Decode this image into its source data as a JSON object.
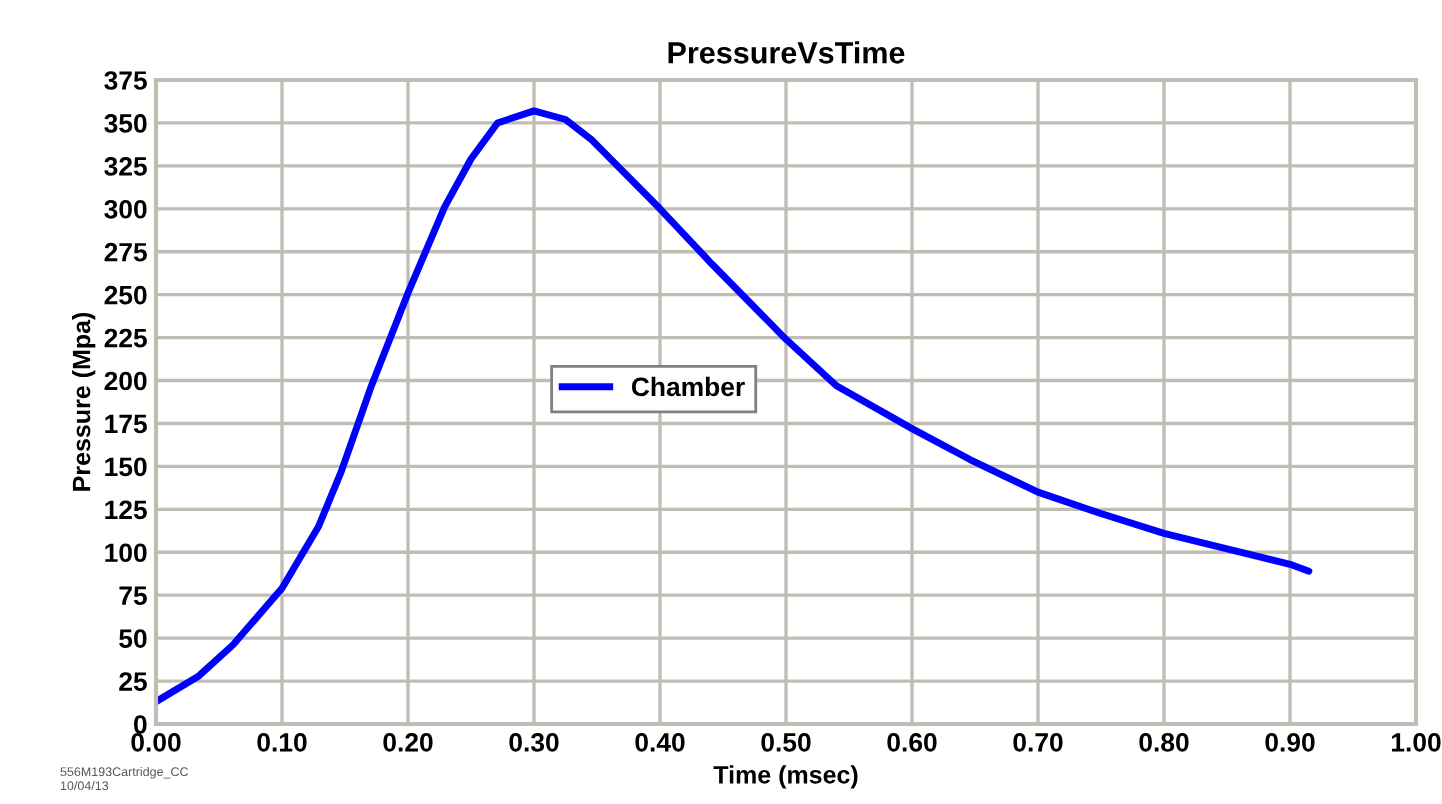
{
  "chart_data": {
    "type": "line",
    "title": "PressureVsTime",
    "xlabel": "Time (msec)",
    "ylabel": "Pressure (Mpa)",
    "series": [
      {
        "name": "Chamber",
        "color": "#0000ff",
        "x": [
          0.0,
          0.034,
          0.061,
          0.1,
          0.129,
          0.147,
          0.171,
          0.2,
          0.229,
          0.25,
          0.271,
          0.3,
          0.325,
          0.346,
          0.4,
          0.441,
          0.5,
          0.54,
          0.6,
          0.646,
          0.7,
          0.748,
          0.8,
          0.85,
          0.9,
          0.915
        ],
        "values": [
          13,
          28,
          46,
          79,
          115,
          147,
          197,
          251,
          301,
          329,
          350,
          357,
          352,
          340,
          300,
          268,
          224,
          197,
          172,
          154,
          135,
          123,
          111,
          102,
          93,
          89
        ]
      }
    ],
    "xlim": [
      0.0,
      1.0
    ],
    "xticks": [
      {
        "value": 0.0,
        "label": "0.00"
      },
      {
        "value": 0.1,
        "label": "0.10"
      },
      {
        "value": 0.2,
        "label": "0.20"
      },
      {
        "value": 0.3,
        "label": "0.30"
      },
      {
        "value": 0.4,
        "label": "0.40"
      },
      {
        "value": 0.5,
        "label": "0.50"
      },
      {
        "value": 0.6,
        "label": "0.60"
      },
      {
        "value": 0.7,
        "label": "0.70"
      },
      {
        "value": 0.8,
        "label": "0.80"
      },
      {
        "value": 0.9,
        "label": "0.90"
      },
      {
        "value": 1.0,
        "label": "1.00"
      }
    ],
    "ylim": [
      0,
      375
    ],
    "yticks": [
      0,
      25,
      50,
      75,
      100,
      125,
      150,
      175,
      200,
      225,
      250,
      275,
      300,
      325,
      350,
      375
    ],
    "grid": true,
    "legend": "center",
    "marker": "none",
    "line_style": "solid",
    "annotations": [
      "556M193Cartridge_CC",
      "10/04/13"
    ]
  }
}
